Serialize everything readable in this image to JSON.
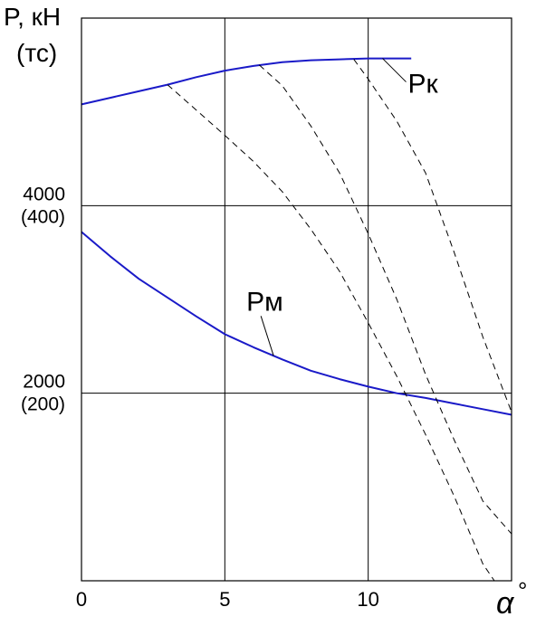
{
  "chart_data": {
    "type": "line",
    "ylabel_line1": "P, кН",
    "ylabel_line2": "(тс)",
    "xlabel": "α",
    "xlabel_unit": "°",
    "xlim": [
      0,
      15
    ],
    "ylim": [
      0,
      6000
    ],
    "grid": true,
    "x_ticks": [
      {
        "value": 0,
        "label": "0"
      },
      {
        "value": 5,
        "label": "5"
      },
      {
        "value": 10,
        "label": "10"
      }
    ],
    "y_ticks": [
      {
        "value": 2000,
        "label": "2000",
        "sublabel": "(200)"
      },
      {
        "value": 4000,
        "label": "4000",
        "sublabel": "(400)"
      }
    ],
    "series": [
      {
        "name": "Рк",
        "style": "solid",
        "color": "#1a1ac8",
        "points": [
          [
            0,
            5080
          ],
          [
            1,
            5150
          ],
          [
            2,
            5220
          ],
          [
            3,
            5290
          ],
          [
            4,
            5370
          ],
          [
            5,
            5440
          ],
          [
            6,
            5490
          ],
          [
            7,
            5530
          ],
          [
            8,
            5550
          ],
          [
            9,
            5560
          ],
          [
            10,
            5570
          ],
          [
            11,
            5570
          ],
          [
            11.5,
            5570
          ]
        ]
      },
      {
        "name": "Рм",
        "style": "solid",
        "color": "#1a1ac8",
        "points": [
          [
            0,
            3720
          ],
          [
            1,
            3460
          ],
          [
            2,
            3220
          ],
          [
            3,
            3020
          ],
          [
            4,
            2820
          ],
          [
            5,
            2630
          ],
          [
            6,
            2490
          ],
          [
            7,
            2360
          ],
          [
            8,
            2240
          ],
          [
            9,
            2150
          ],
          [
            10,
            2070
          ],
          [
            11,
            2000
          ],
          [
            12,
            1950
          ],
          [
            13,
            1890
          ],
          [
            14,
            1830
          ],
          [
            15,
            1770
          ]
        ]
      },
      {
        "style": "dashed",
        "color": "#000000",
        "points": [
          [
            3,
            5290
          ],
          [
            4,
            5020
          ],
          [
            5,
            4750
          ],
          [
            6,
            4470
          ],
          [
            7,
            4150
          ],
          [
            8,
            3750
          ],
          [
            9,
            3300
          ],
          [
            10,
            2750
          ],
          [
            11,
            2180
          ],
          [
            12,
            1560
          ],
          [
            13,
            900
          ],
          [
            14,
            180
          ],
          [
            14.4,
            0
          ]
        ]
      },
      {
        "style": "dashed",
        "color": "#000000",
        "points": [
          [
            6.2,
            5500
          ],
          [
            7,
            5280
          ],
          [
            8,
            4850
          ],
          [
            9,
            4350
          ],
          [
            10,
            3700
          ],
          [
            11,
            3000
          ],
          [
            12,
            2200
          ],
          [
            13,
            1500
          ],
          [
            14,
            850
          ],
          [
            15,
            500
          ]
        ]
      },
      {
        "style": "dashed",
        "color": "#000000",
        "points": [
          [
            9.5,
            5560
          ],
          [
            10,
            5350
          ],
          [
            11,
            4900
          ],
          [
            12,
            4350
          ],
          [
            13,
            3500
          ],
          [
            14,
            2600
          ],
          [
            15,
            1800
          ]
        ]
      }
    ],
    "annotations": [
      {
        "text": "Рк",
        "series": "Рк",
        "at": 10.5
      },
      {
        "text": "Рм",
        "series": "Рм",
        "at": 6.7
      }
    ]
  }
}
